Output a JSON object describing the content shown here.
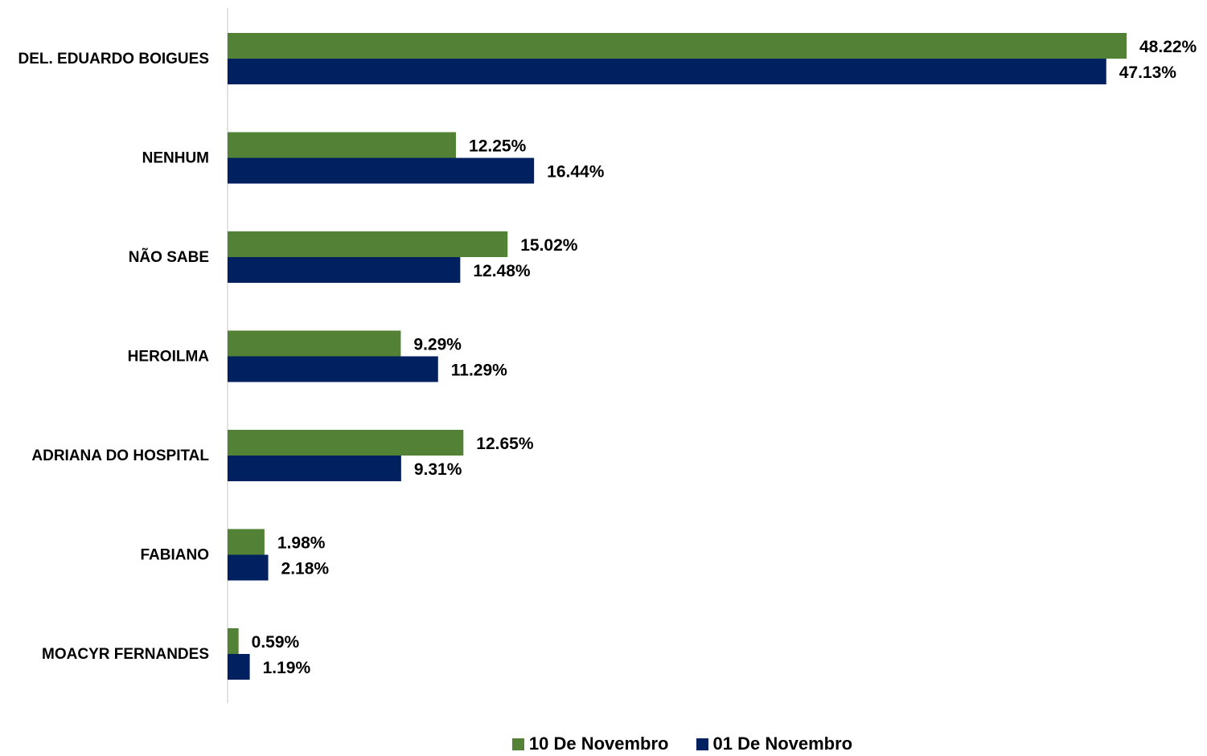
{
  "chart_data": {
    "type": "bar",
    "orientation": "horizontal",
    "categories": [
      "DEL. EDUARDO BOIGUES",
      "NENHUM",
      "NÃO SABE",
      "HEROILMA",
      "ADRIANA DO HOSPITAL",
      "FABIANO",
      "MOACYR FERNANDES"
    ],
    "series": [
      {
        "name": "10 De Novembro",
        "color": "#538135",
        "values": [
          48.22,
          12.25,
          15.02,
          9.29,
          12.65,
          1.98,
          0.59
        ],
        "labels": [
          "48.22%",
          "12.25%",
          "15.02%",
          "9.29%",
          "12.65%",
          "1.98%",
          "0.59%"
        ]
      },
      {
        "name": "01 De Novembro",
        "color": "#002060",
        "values": [
          47.13,
          16.44,
          12.48,
          11.29,
          9.31,
          2.18,
          1.19
        ],
        "labels": [
          "47.13%",
          "16.44%",
          "12.48%",
          "11.29%",
          "9.31%",
          "2.18%",
          "1.19%"
        ]
      }
    ],
    "xlim": [
      0,
      48.22
    ],
    "grid": false,
    "legend_position": "bottom"
  }
}
